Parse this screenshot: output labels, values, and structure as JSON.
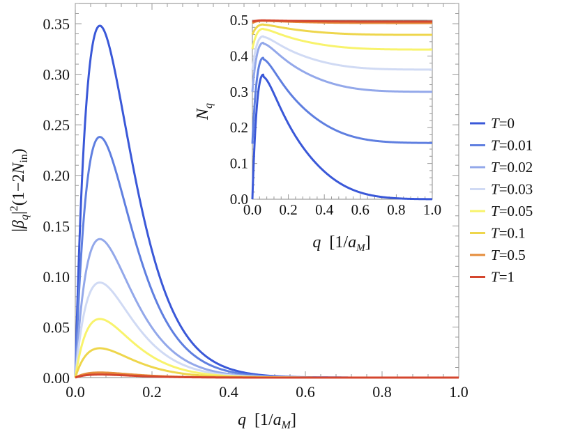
{
  "chart_data": [
    {
      "id": "main",
      "type": "line",
      "xlabel": {
        "var": "q",
        "unit_prefix": "[1/",
        "unit_var": "a",
        "unit_sub": "M",
        "unit_suffix": "]"
      },
      "ylabel": {
        "prefix": "|",
        "var": "β",
        "sub": "q",
        "mid": "|",
        "sup": "2",
        "rest": "(1−2",
        "var2": "N",
        "sub2": "in",
        "end": ")"
      },
      "xlim": [
        0,
        1
      ],
      "ylim": [
        0,
        0.37
      ],
      "xticks": [
        0,
        0.2,
        0.4,
        0.6,
        0.8,
        1.0
      ],
      "xtick_labels": [
        "0.0",
        "0.2",
        "0.4",
        "0.6",
        "0.8",
        "1.0"
      ],
      "yticks": [
        0,
        0.05,
        0.1,
        0.15,
        0.2,
        0.25,
        0.3,
        0.35
      ],
      "ytick_labels": [
        "0.00",
        "0.05",
        "0.10",
        "0.15",
        "0.20",
        "0.25",
        "0.30",
        "0.35"
      ],
      "series": [
        {
          "name": "T=0",
          "peak": 0.348
        },
        {
          "name": "T=0.01",
          "peak": 0.238
        },
        {
          "name": "T=0.02",
          "peak": 0.137
        },
        {
          "name": "T=0.03",
          "peak": 0.094
        },
        {
          "name": "T=0.05",
          "peak": 0.058
        },
        {
          "name": "T=0.1",
          "peak": 0.029
        },
        {
          "name": "T=0.5",
          "peak": 0.005
        },
        {
          "name": "T=1",
          "peak": 0.003
        }
      ],
      "peak_q": 0.065
    },
    {
      "id": "inset",
      "type": "line",
      "xlabel": {
        "var": "q",
        "unit_prefix": "[1/",
        "unit_var": "a",
        "unit_sub": "M",
        "unit_suffix": "]"
      },
      "ylabel": {
        "var": "N",
        "sub": "q"
      },
      "xlim": [
        0,
        1
      ],
      "ylim": [
        0,
        0.5
      ],
      "xticks": [
        0,
        0.2,
        0.4,
        0.6,
        0.8,
        1.0
      ],
      "xtick_labels": [
        "0.0",
        "0.2",
        "0.4",
        "0.6",
        "0.8",
        "1.0"
      ],
      "yticks": [
        0,
        0.1,
        0.2,
        0.3,
        0.4,
        0.5
      ],
      "ytick_labels": [
        "0.0",
        "0.1",
        "0.2",
        "0.3",
        "0.4",
        "0.5"
      ],
      "series": [
        {
          "name": "T=0",
          "start": 0.0,
          "peak": 0.348,
          "plateau": 0.0
        },
        {
          "name": "T=0.01",
          "start": 0.155,
          "peak": 0.395,
          "plateau": 0.157
        },
        {
          "name": "T=0.02",
          "start": 0.3,
          "peak": 0.437,
          "plateau": 0.3
        },
        {
          "name": "T=0.03",
          "start": 0.36,
          "peak": 0.455,
          "plateau": 0.362
        },
        {
          "name": "T=0.05",
          "start": 0.42,
          "peak": 0.476,
          "plateau": 0.418
        },
        {
          "name": "T=0.1",
          "start": 0.46,
          "peak": 0.488,
          "plateau": 0.459
        },
        {
          "name": "T=0.5",
          "start": 0.492,
          "peak": 0.4985,
          "plateau": 0.492
        },
        {
          "name": "T=1",
          "start": 0.496,
          "peak": 0.4995,
          "plateau": 0.496
        }
      ]
    }
  ],
  "legend": {
    "placement": "right",
    "entries": [
      {
        "var": "T",
        "value": "=0",
        "color": "#3a58d8"
      },
      {
        "var": "T",
        "value": "=0.01",
        "color": "#5f7fe0"
      },
      {
        "var": "T",
        "value": "=0.02",
        "color": "#93a8ea"
      },
      {
        "var": "T",
        "value": "=0.03",
        "color": "#d0daf4"
      },
      {
        "var": "T",
        "value": "=0.05",
        "color": "#f8f36c"
      },
      {
        "var": "T",
        "value": "=0.1",
        "color": "#eed64c"
      },
      {
        "var": "T",
        "value": "=0.5",
        "color": "#e58c3a"
      },
      {
        "var": "T",
        "value": "=1",
        "color": "#d4462e"
      }
    ]
  }
}
